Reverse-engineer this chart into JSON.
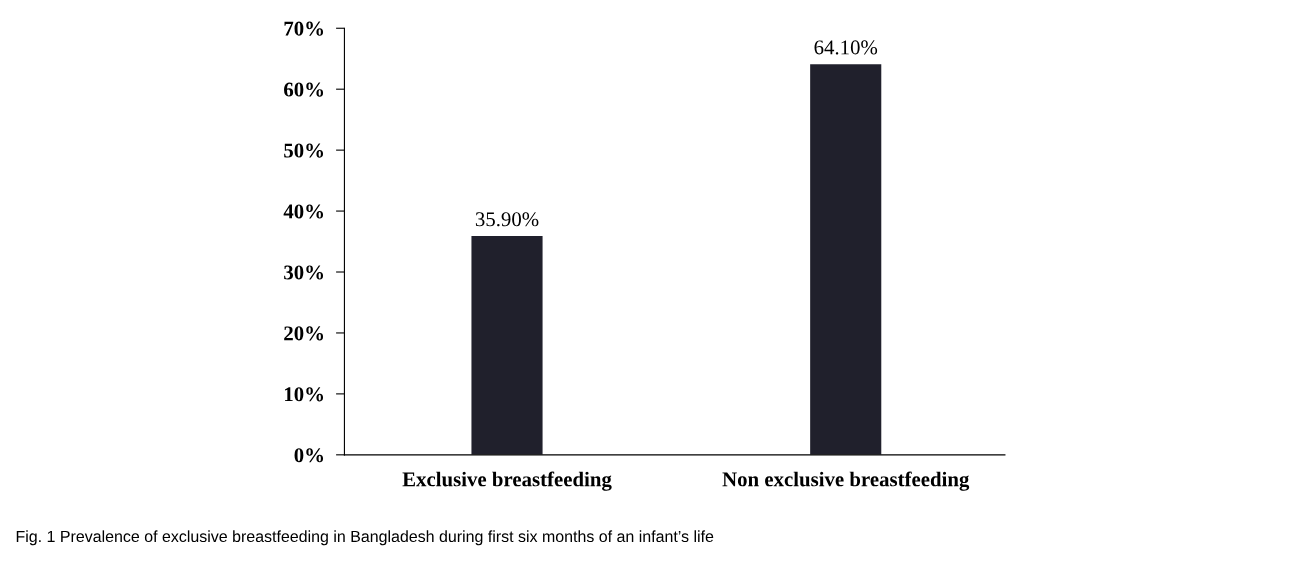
{
  "chart_data": {
    "type": "bar",
    "categories": [
      "Exclusive breastfeeding",
      "Non exclusive breastfeeding"
    ],
    "values": [
      35.9,
      64.1
    ],
    "value_labels": [
      "35.90%",
      "64.10%"
    ],
    "color": "#20202c",
    "ylim": [
      0,
      70
    ],
    "yticks": [
      {
        "value": 0,
        "label": "0%"
      },
      {
        "value": 10,
        "label": "10%"
      },
      {
        "value": 20,
        "label": "20%"
      },
      {
        "value": 30,
        "label": "30%"
      },
      {
        "value": 40,
        "label": "40%"
      },
      {
        "value": 50,
        "label": "50%"
      },
      {
        "value": 60,
        "label": "60%"
      },
      {
        "value": 70,
        "label": "70%"
      }
    ],
    "grid": false,
    "legend": false,
    "annotations": [
      "Fig. 1 Prevalence of exclusive breastfeeding in Bangladesh during first six months of an infant’s life"
    ]
  }
}
